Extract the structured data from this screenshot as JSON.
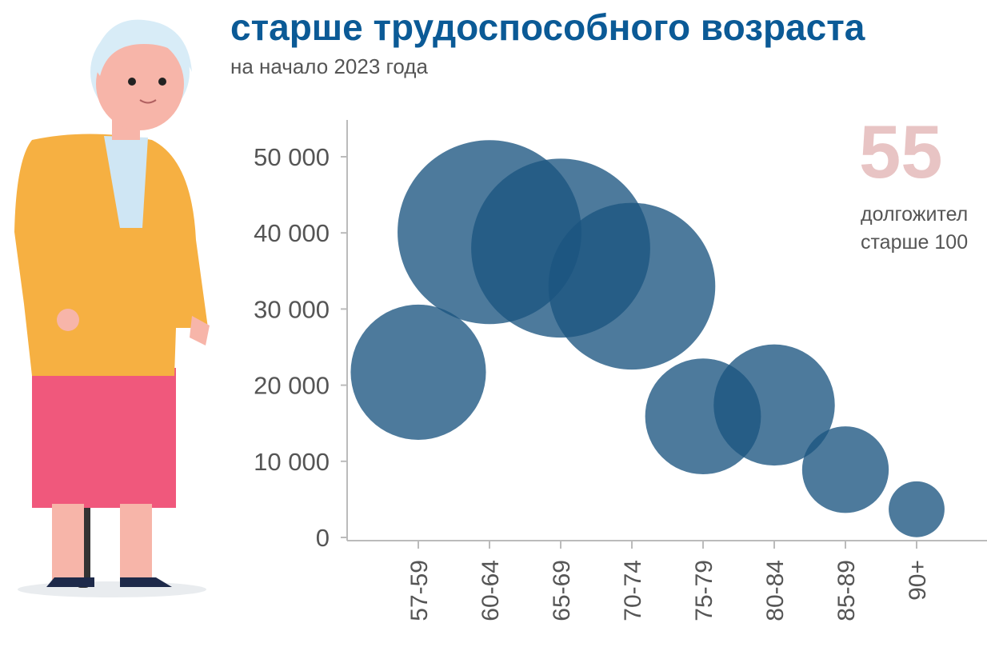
{
  "chart_data": {
    "type": "bubble",
    "title": "старше трудоспособного возраста",
    "subtitle": "на начало 2023 года",
    "categories": [
      "57-59",
      "60-64",
      "65-69",
      "70-74",
      "75-79",
      "80-84",
      "85-89",
      "90+"
    ],
    "values": [
      21700,
      40100,
      38000,
      33000,
      15900,
      17400,
      8900,
      3700
    ],
    "color": "#1b5580",
    "ylim": [
      0,
      55000
    ],
    "yticks": [
      0,
      {
        "value": 10000,
        "label": "10 000"
      },
      {
        "value": 20000,
        "label": "20 000"
      },
      {
        "value": 30000,
        "label": "30 000"
      },
      {
        "value": 40000,
        "label": "40 000"
      },
      {
        "value": 50000,
        "label": "50 000"
      }
    ],
    "callout": {
      "value": "55",
      "lines": [
        "долгожител",
        "старше 100"
      ]
    }
  }
}
